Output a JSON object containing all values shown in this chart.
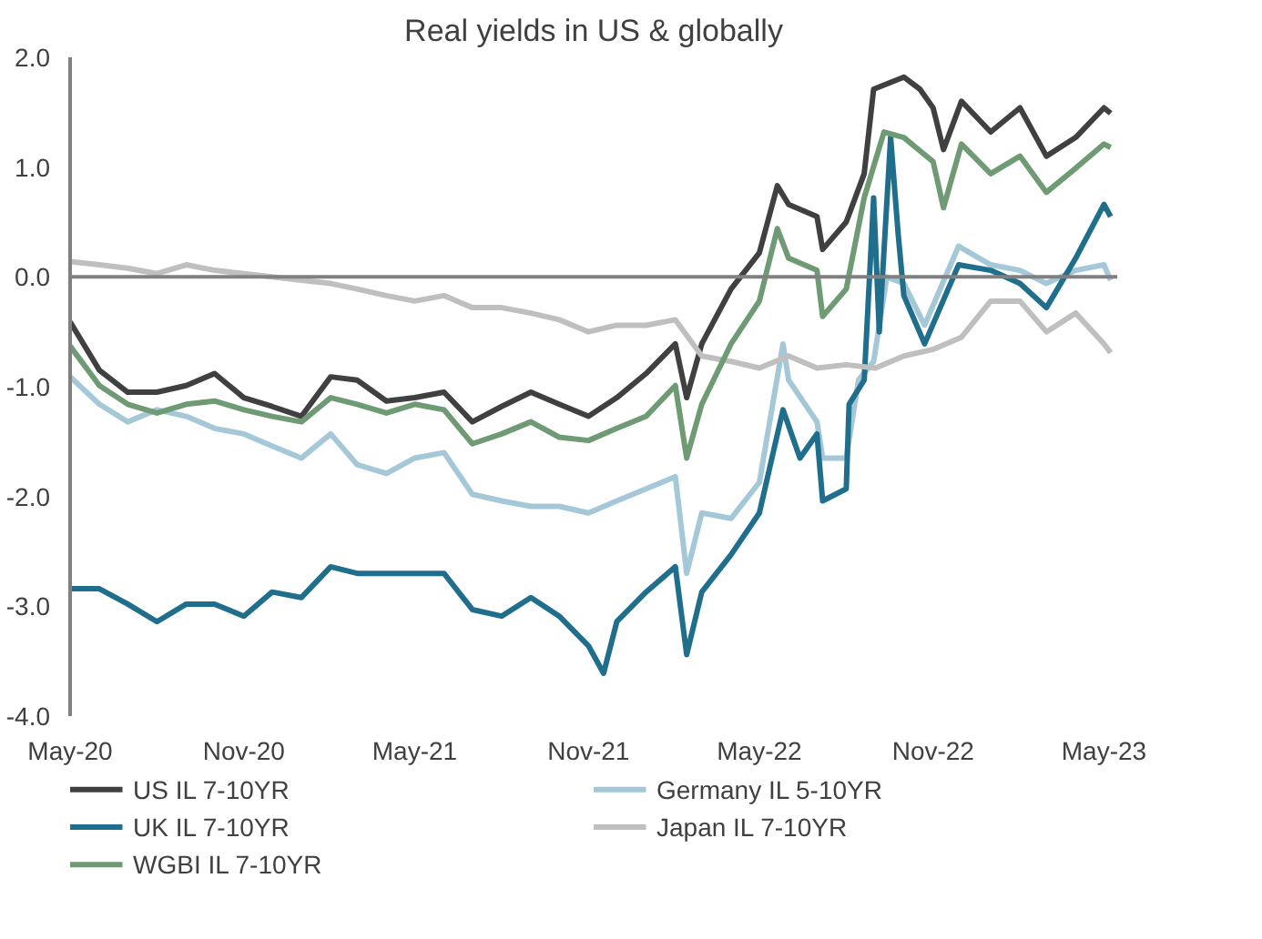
{
  "chart_data": {
    "type": "line",
    "title": "Real yields in US & globally",
    "xlim": [
      "2020-05-01",
      "2023-05-15"
    ],
    "xticks": [
      {
        "value": "2020-05-01",
        "label": "May-20"
      },
      {
        "value": "2020-11-01",
        "label": "Nov-20"
      },
      {
        "value": "2021-05-01",
        "label": "May-21"
      },
      {
        "value": "2021-11-01",
        "label": "Nov-21"
      },
      {
        "value": "2022-05-01",
        "label": "May-22"
      },
      {
        "value": "2022-11-01",
        "label": "Nov-22"
      },
      {
        "value": "2023-05-01",
        "label": "May-23"
      }
    ],
    "ylim": [
      -4,
      2
    ],
    "yticks": [
      {
        "value": -4,
        "label": "-4.0"
      },
      {
        "value": -3,
        "label": "-3.0"
      },
      {
        "value": -2,
        "label": "-2.0"
      },
      {
        "value": -1,
        "label": "-1.0"
      },
      {
        "value": 0,
        "label": "0.0"
      },
      {
        "value": 1,
        "label": "1.0"
      },
      {
        "value": 2,
        "label": "2.0"
      }
    ],
    "ref_lines": [
      {
        "axis": "y",
        "value": 0,
        "color": "#808080"
      }
    ],
    "grid": false,
    "legend": "bottom",
    "marker": "none",
    "line_style": "solid",
    "series": [
      {
        "name": "US IL 7-10YR",
        "color": "#404040",
        "x": [
          "2020-05-01",
          "2020-06-01",
          "2020-07-01",
          "2020-08-01",
          "2020-09-01",
          "2020-10-01",
          "2020-11-01",
          "2020-12-01",
          "2021-01-01",
          "2021-02-01",
          "2021-03-01",
          "2021-04-01",
          "2021-05-01",
          "2021-06-01",
          "2021-07-01",
          "2021-08-01",
          "2021-09-01",
          "2021-10-01",
          "2021-11-01",
          "2021-12-01",
          "2022-01-01",
          "2022-02-01",
          "2022-02-13",
          "2022-03-01",
          "2022-04-01",
          "2022-05-01",
          "2022-05-20",
          "2022-06-01",
          "2022-07-01",
          "2022-07-07",
          "2022-08-01",
          "2022-08-20",
          "2022-08-30",
          "2022-10-01",
          "2022-10-18",
          "2022-11-01",
          "2022-11-12",
          "2022-12-01",
          "2023-01-01",
          "2023-02-01",
          "2023-03-01",
          "2023-04-01",
          "2023-05-01",
          "2023-05-08"
        ],
        "values": [
          -0.41,
          -0.85,
          -1.05,
          -1.05,
          -0.99,
          -0.88,
          -1.1,
          -1.18,
          -1.27,
          -0.91,
          -0.94,
          -1.13,
          -1.1,
          -1.05,
          -1.32,
          -1.18,
          -1.05,
          -1.16,
          -1.27,
          -1.1,
          -0.88,
          -0.61,
          -1.1,
          -0.61,
          -0.11,
          0.22,
          0.83,
          0.66,
          0.55,
          0.25,
          0.5,
          0.94,
          1.71,
          1.82,
          1.71,
          1.54,
          1.16,
          1.6,
          1.32,
          1.54,
          1.1,
          1.27,
          1.54,
          1.49
        ]
      },
      {
        "name": "Germany IL 5-10YR",
        "color": "#a5c8d9",
        "x": [
          "2020-05-01",
          "2020-06-01",
          "2020-07-01",
          "2020-08-01",
          "2020-09-01",
          "2020-10-01",
          "2020-11-01",
          "2020-12-01",
          "2021-01-01",
          "2021-02-01",
          "2021-03-01",
          "2021-04-01",
          "2021-05-01",
          "2021-06-01",
          "2021-07-01",
          "2021-08-01",
          "2021-09-01",
          "2021-10-01",
          "2021-11-01",
          "2021-12-01",
          "2022-01-01",
          "2022-02-01",
          "2022-02-13",
          "2022-03-01",
          "2022-04-01",
          "2022-05-01",
          "2022-05-26",
          "2022-06-01",
          "2022-07-01",
          "2022-07-07",
          "2022-08-01",
          "2022-08-14",
          "2022-08-30",
          "2022-09-13",
          "2022-10-01",
          "2022-10-23",
          "2022-11-28",
          "2023-01-01",
          "2023-02-01",
          "2023-03-01",
          "2023-04-01",
          "2023-05-01",
          "2023-05-08"
        ],
        "values": [
          -0.91,
          -1.16,
          -1.32,
          -1.21,
          -1.27,
          -1.38,
          -1.43,
          -1.54,
          -1.65,
          -1.43,
          -1.71,
          -1.79,
          -1.65,
          -1.6,
          -1.98,
          -2.04,
          -2.09,
          -2.09,
          -2.15,
          -2.04,
          -1.93,
          -1.82,
          -2.7,
          -2.15,
          -2.2,
          -1.87,
          -0.61,
          -0.94,
          -1.32,
          -1.65,
          -1.65,
          -0.94,
          -0.77,
          0.0,
          -0.06,
          -0.44,
          0.28,
          0.11,
          0.06,
          -0.06,
          0.06,
          0.11,
          -0.03
        ]
      },
      {
        "name": "UK IL 7-10YR",
        "color": "#1f6e8c",
        "x": [
          "2020-05-01",
          "2020-06-01",
          "2020-07-01",
          "2020-08-01",
          "2020-09-01",
          "2020-10-01",
          "2020-11-01",
          "2020-12-01",
          "2021-01-01",
          "2021-02-01",
          "2021-03-01",
          "2021-04-01",
          "2021-05-01",
          "2021-06-01",
          "2021-07-01",
          "2021-08-01",
          "2021-09-01",
          "2021-10-01",
          "2021-11-01",
          "2021-11-17",
          "2021-12-01",
          "2022-01-01",
          "2022-02-01",
          "2022-02-13",
          "2022-03-01",
          "2022-04-01",
          "2022-05-01",
          "2022-05-26",
          "2022-06-13",
          "2022-07-01",
          "2022-07-07",
          "2022-08-01",
          "2022-08-04",
          "2022-08-20",
          "2022-08-30",
          "2022-09-05",
          "2022-09-17",
          "2022-09-25",
          "2022-10-01",
          "2022-10-23",
          "2022-11-28",
          "2023-01-01",
          "2023-02-01",
          "2023-03-01",
          "2023-04-01",
          "2023-05-01",
          "2023-05-08"
        ],
        "values": [
          -2.84,
          -2.84,
          -2.98,
          -3.14,
          -2.98,
          -2.98,
          -3.09,
          -2.87,
          -2.92,
          -2.64,
          -2.7,
          -2.7,
          -2.7,
          -2.7,
          -3.03,
          -3.09,
          -2.92,
          -3.09,
          -3.36,
          -3.61,
          -3.14,
          -2.87,
          -2.64,
          -3.44,
          -2.87,
          -2.53,
          -2.15,
          -1.21,
          -1.65,
          -1.43,
          -2.04,
          -1.93,
          -1.16,
          -0.94,
          0.72,
          -0.5,
          1.27,
          0.39,
          -0.17,
          -0.61,
          0.11,
          0.06,
          -0.06,
          -0.28,
          0.17,
          0.66,
          0.55
        ]
      },
      {
        "name": "Japan IL 7-10YR",
        "color": "#bfbfbf",
        "x": [
          "2020-05-01",
          "2020-06-01",
          "2020-07-01",
          "2020-08-01",
          "2020-09-01",
          "2020-10-01",
          "2020-11-01",
          "2020-12-01",
          "2021-01-01",
          "2021-02-01",
          "2021-03-01",
          "2021-04-01",
          "2021-05-01",
          "2021-06-01",
          "2021-07-01",
          "2021-08-01",
          "2021-09-01",
          "2021-10-01",
          "2021-11-01",
          "2021-12-01",
          "2022-01-01",
          "2022-02-01",
          "2022-03-01",
          "2022-04-01",
          "2022-05-01",
          "2022-06-01",
          "2022-07-01",
          "2022-08-01",
          "2022-09-01",
          "2022-10-01",
          "2022-11-01",
          "2022-12-01",
          "2023-01-01",
          "2023-02-01",
          "2023-03-01",
          "2023-04-01",
          "2023-05-01",
          "2023-05-08"
        ],
        "values": [
          0.14,
          0.11,
          0.08,
          0.03,
          0.11,
          0.06,
          0.03,
          0.0,
          -0.03,
          -0.06,
          -0.11,
          -0.17,
          -0.22,
          -0.17,
          -0.28,
          -0.28,
          -0.33,
          -0.39,
          -0.5,
          -0.44,
          -0.44,
          -0.39,
          -0.72,
          -0.77,
          -0.83,
          -0.72,
          -0.83,
          -0.8,
          -0.83,
          -0.72,
          -0.66,
          -0.55,
          -0.22,
          -0.22,
          -0.5,
          -0.33,
          -0.61,
          -0.69
        ]
      },
      {
        "name": "WGBI IL 7-10YR",
        "color": "#6e9a74",
        "x": [
          "2020-05-01",
          "2020-06-01",
          "2020-07-01",
          "2020-08-01",
          "2020-09-01",
          "2020-10-01",
          "2020-11-01",
          "2020-12-01",
          "2021-01-01",
          "2021-02-01",
          "2021-03-01",
          "2021-04-01",
          "2021-05-01",
          "2021-06-01",
          "2021-07-01",
          "2021-08-01",
          "2021-09-01",
          "2021-10-01",
          "2021-11-01",
          "2021-12-01",
          "2022-01-01",
          "2022-02-01",
          "2022-02-13",
          "2022-03-01",
          "2022-04-01",
          "2022-05-01",
          "2022-05-20",
          "2022-06-01",
          "2022-07-01",
          "2022-07-07",
          "2022-08-01",
          "2022-08-20",
          "2022-09-10",
          "2022-10-01",
          "2022-11-01",
          "2022-11-12",
          "2022-12-01",
          "2023-01-01",
          "2023-02-01",
          "2023-03-01",
          "2023-04-01",
          "2023-05-01",
          "2023-05-08"
        ],
        "values": [
          -0.63,
          -0.99,
          -1.16,
          -1.24,
          -1.16,
          -1.13,
          -1.21,
          -1.27,
          -1.32,
          -1.1,
          -1.16,
          -1.24,
          -1.16,
          -1.21,
          -1.52,
          -1.43,
          -1.32,
          -1.46,
          -1.49,
          -1.38,
          -1.27,
          -0.99,
          -1.65,
          -1.16,
          -0.61,
          -0.22,
          0.44,
          0.17,
          0.06,
          -0.36,
          -0.11,
          0.72,
          1.32,
          1.27,
          1.05,
          0.63,
          1.21,
          0.94,
          1.1,
          0.77,
          0.99,
          1.21,
          1.18
        ]
      }
    ]
  }
}
